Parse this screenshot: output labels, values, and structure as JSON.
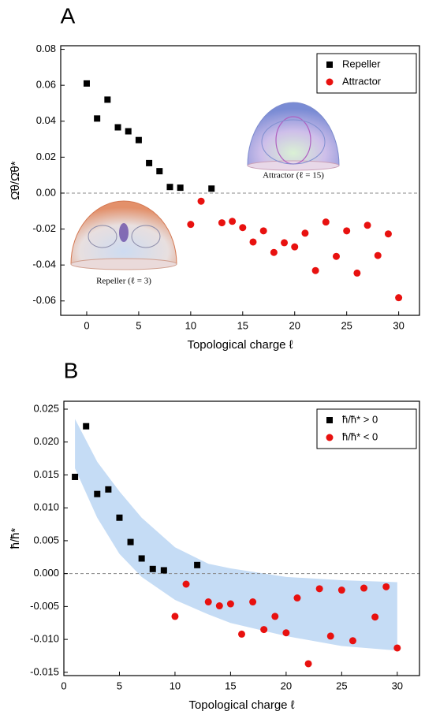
{
  "chart_data": [
    {
      "type": "scatter",
      "panel_label": "A",
      "x_label": "Topological charge ℓ",
      "y_label": "Ω̄θ/Ω̄θ*",
      "xlim": [
        -2.5,
        32
      ],
      "ylim": [
        -0.068,
        0.082
      ],
      "xticks": [
        0,
        5,
        10,
        15,
        20,
        25,
        30
      ],
      "yticks": [
        0.08,
        0.06,
        0.04,
        0.02,
        {
          "value": 0,
          "label": "0.00"
        },
        -0.02,
        -0.04,
        -0.06
      ],
      "hline": 0,
      "legend": "top-right",
      "insets": [
        "Attractor (ℓ = 15)",
        "Repeller (ℓ = 3)"
      ],
      "series": [
        {
          "name": "Repeller",
          "color": "#000000",
          "marker": "square",
          "x": [
            0,
            1,
            2,
            3,
            4,
            5,
            6,
            7,
            8,
            9,
            12
          ],
          "values": [
            0.061,
            0.0415,
            0.052,
            0.0366,
            0.0344,
            0.0295,
            0.0167,
            0.0122,
            0.0034,
            0.003,
            0.0025
          ]
        },
        {
          "name": "Attractor",
          "color": "#e8110f",
          "marker": "circle",
          "x": [
            10,
            11,
            13,
            14,
            15,
            16,
            17,
            18,
            19,
            20,
            21,
            22,
            23,
            24,
            25,
            26,
            27,
            28,
            29,
            30
          ],
          "values": [
            -0.0174,
            -0.0045,
            -0.0165,
            -0.0157,
            -0.0192,
            -0.0272,
            -0.021,
            -0.033,
            -0.0276,
            -0.0299,
            -0.0223,
            -0.0431,
            -0.0161,
            -0.0352,
            -0.021,
            -0.0445,
            -0.0179,
            -0.0347,
            -0.0227,
            -0.0582
          ]
        }
      ]
    },
    {
      "type": "scatter",
      "panel_label": "B",
      "x_label": "Topological charge ℓ",
      "y_label": "ħ̄/ħ̄*",
      "xlim": [
        0,
        32
      ],
      "ylim": [
        -0.0155,
        0.0262
      ],
      "xticks": [
        0,
        5,
        10,
        15,
        20,
        25,
        30
      ],
      "yticks": [
        0.025,
        {
          "value": 0.02,
          "label": "0.020"
        },
        0.015,
        {
          "value": 0.01,
          "label": "0.010"
        },
        0.005,
        {
          "value": 0,
          "label": "0.000"
        },
        -0.005,
        {
          "value": -0.01,
          "label": "-0.010"
        },
        -0.015
      ],
      "hline": 0,
      "legend": "top-right",
      "band": {
        "color": "#c5dcf5",
        "x": [
          1,
          3,
          5,
          7,
          10,
          13,
          15,
          20,
          25,
          30
        ],
        "upper": [
          0.0235,
          0.017,
          0.0125,
          0.0085,
          0.004,
          0.0015,
          0.0008,
          -0.0005,
          -0.001,
          -0.0013
        ],
        "lower": [
          0.016,
          0.0085,
          0.003,
          -0.0005,
          -0.004,
          -0.0062,
          -0.0075,
          -0.0095,
          -0.011,
          -0.0117
        ]
      },
      "series": [
        {
          "name": "ħ̄/ħ̄* > 0",
          "color": "#000000",
          "marker": "square",
          "x": [
            1,
            2,
            3,
            4,
            5,
            6,
            7,
            8,
            9,
            12
          ],
          "values": [
            0.0147,
            0.0224,
            0.0121,
            0.0128,
            0.0085,
            0.0048,
            0.0023,
            0.0007,
            0.0005,
            0.0013
          ]
        },
        {
          "name": "ħ̄/ħ̄* < 0",
          "color": "#e8110f",
          "marker": "circle",
          "x": [
            10,
            11,
            13,
            14,
            15,
            16,
            17,
            18,
            19,
            20,
            21,
            22,
            23,
            24,
            25,
            26,
            27,
            28,
            29,
            30
          ],
          "values": [
            -0.0065,
            -0.0016,
            -0.0043,
            -0.0049,
            -0.0046,
            -0.0092,
            -0.0043,
            -0.0085,
            -0.0065,
            -0.009,
            -0.0037,
            -0.0137,
            -0.0023,
            -0.0095,
            -0.0025,
            -0.0102,
            -0.0022,
            -0.0066,
            -0.002,
            -0.0113
          ]
        }
      ]
    }
  ]
}
